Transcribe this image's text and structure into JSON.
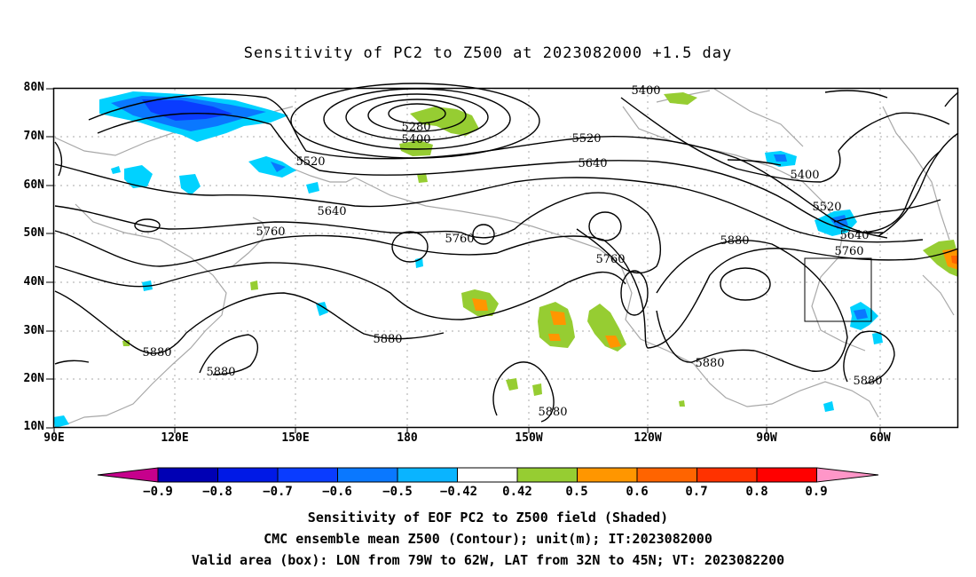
{
  "title": "Sensitivity of PC2 to Z500 at 2023082000 +1.5 day",
  "map": {
    "lat_labels": [
      "80N",
      "70N",
      "60N",
      "50N",
      "40N",
      "30N",
      "20N",
      "10N"
    ],
    "lon_labels": [
      "90E",
      "120E",
      "150E",
      "180",
      "150W",
      "120W",
      "90W",
      "60W"
    ],
    "contour_labels": [
      "5400",
      "5280",
      "5400",
      "5520",
      "5520",
      "5640",
      "5640",
      "5760",
      "5760",
      "5760",
      "5880",
      "5400",
      "5520",
      "5640",
      "5760",
      "5880",
      "5880",
      "5880",
      "5880",
      "5880",
      "5880"
    ],
    "valid_box": {
      "lon_from": "79W",
      "lon_to": "62W",
      "lat_from": "32N",
      "lat_to": "45N"
    }
  },
  "colorbar": {
    "labels": [
      "−0.9",
      "−0.8",
      "−0.7",
      "−0.6",
      "−0.5",
      "−0.42",
      "0.42",
      "0.5",
      "0.6",
      "0.7",
      "0.8",
      "0.9"
    ],
    "colors": [
      "#c6008c",
      "#0000b4",
      "#0019e6",
      "#0a3cff",
      "#0a78ff",
      "#0ab4ff",
      "#00d2ff",
      "#ffffff",
      "#96cd32",
      "#ff9600",
      "#ff6400",
      "#ff3200",
      "#ff0000",
      "#ff96c8"
    ]
  },
  "captions": [
    "Sensitivity of EOF PC2 to Z500 field (Shaded)",
    "CMC ensemble mean Z500 (Contour); unit(m); IT:2023082000",
    "Valid area (box): LON from 79W to 62W, LAT from 32N to 45N; VT: 2023082200"
  ]
}
